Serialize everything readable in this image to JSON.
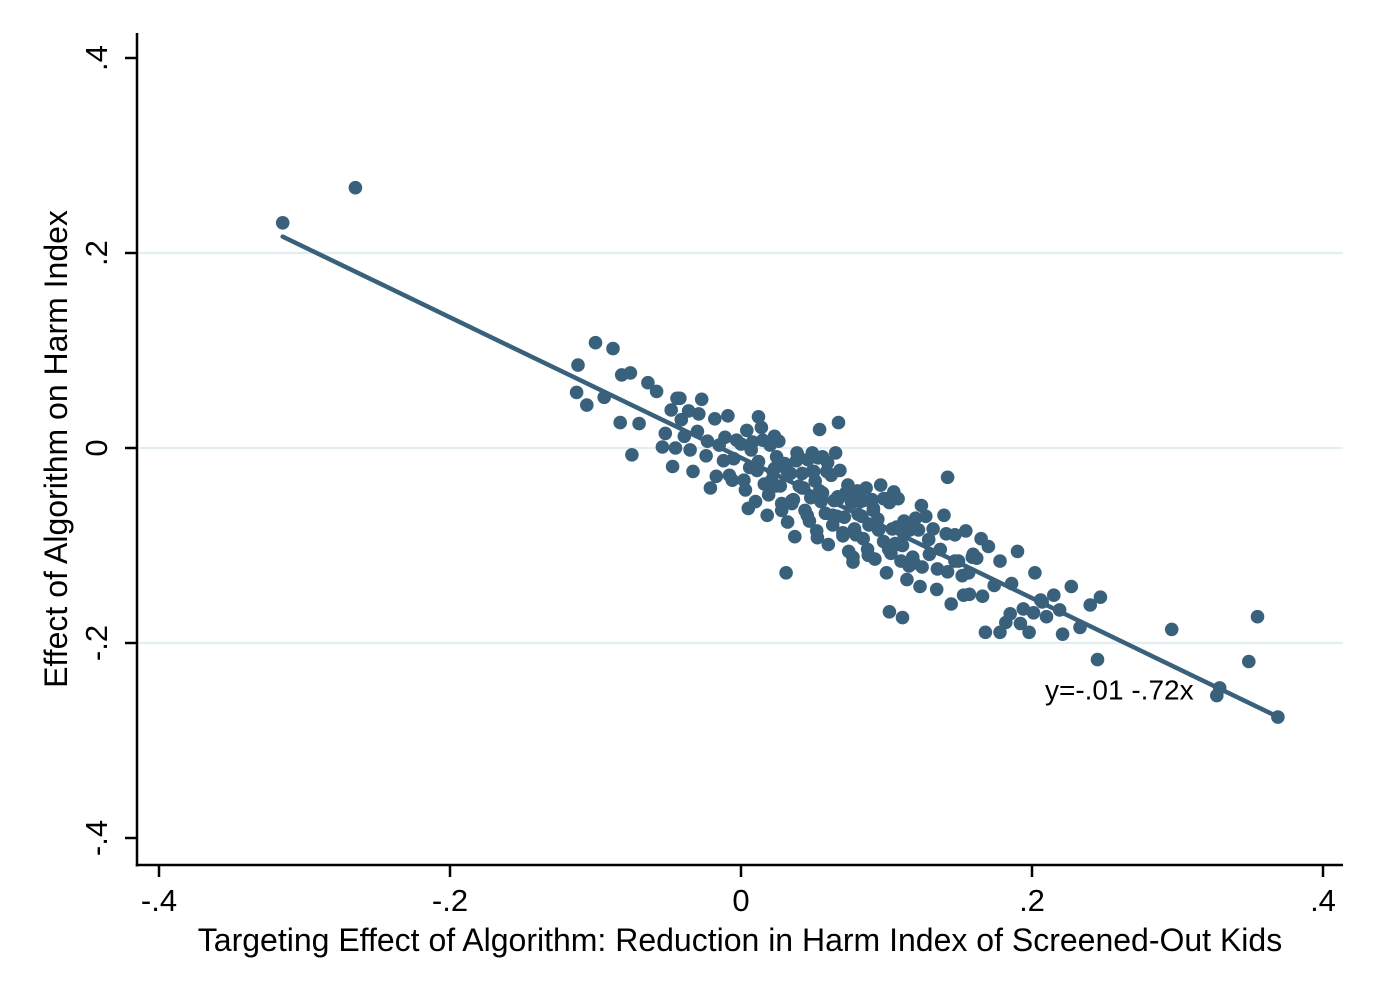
{
  "chart_data": {
    "type": "scatter",
    "title": "",
    "xlabel": "Targeting Effect of Algorithm: Reduction in Harm Index of Screened-Out Kids",
    "ylabel": "Effect of Algorithm on Harm Index",
    "xlim": [
      -0.415,
      0.414
    ],
    "ylim": [
      -0.428,
      0.426
    ],
    "grid": "horizontal gridlines only",
    "legend_position": "none",
    "xticks": {
      "values": [
        -0.4,
        -0.2,
        0,
        0.2,
        0.4
      ],
      "labels": [
        "-.4",
        "-.2",
        "0",
        ".2",
        ".4"
      ]
    },
    "yticks": {
      "values": [
        -0.4,
        -0.2,
        0,
        0.2,
        0.4
      ],
      "labels": [
        "-.4",
        "-.2",
        "0",
        ".2",
        ".4"
      ]
    },
    "gridline_values_y": [
      0.2,
      0,
      -0.2
    ],
    "colors": {
      "marker": "#3a617c",
      "fit_line": "#3a617c",
      "annotation": "#5d87a6",
      "gridline": "#e4eef1",
      "axis": "#000000"
    },
    "fit_line": {
      "equation_label": "y=-.01 -.72x",
      "intercept": -0.01,
      "slope": -0.72,
      "x_start": -0.315,
      "x_end": 0.369,
      "label_anchor_xy": [
        0.26,
        -0.258
      ]
    },
    "points": [
      [
        -0.315,
        0.231
      ],
      [
        -0.265,
        0.267
      ],
      [
        0.296,
        -0.186
      ],
      [
        0.355,
        -0.173
      ],
      [
        0.349,
        -0.219
      ],
      [
        0.329,
        -0.246
      ],
      [
        0.327,
        -0.254
      ],
      [
        0.369,
        -0.276
      ],
      [
        -0.112,
        0.085
      ],
      [
        -0.106,
        0.044
      ],
      [
        -0.1,
        0.108
      ],
      [
        -0.094,
        0.052
      ],
      [
        -0.088,
        0.102
      ],
      [
        -0.082,
        0.075
      ],
      [
        -0.076,
        0.077
      ],
      [
        -0.07,
        0.025
      ],
      [
        -0.064,
        0.067
      ],
      [
        -0.058,
        0.058
      ],
      [
        -0.052,
        0.015
      ],
      [
        -0.113,
        0.057
      ],
      [
        -0.075,
        -0.007
      ],
      [
        -0.054,
        0.001
      ],
      [
        -0.083,
        0.026
      ],
      [
        -0.048,
        0.039
      ],
      [
        -0.045,
        0.0
      ],
      [
        -0.042,
        0.051
      ],
      [
        -0.039,
        0.012
      ],
      [
        -0.036,
        0.038
      ],
      [
        -0.033,
        -0.024
      ],
      [
        -0.03,
        0.017
      ],
      [
        -0.027,
        0.05
      ],
      [
        -0.024,
        -0.008
      ],
      [
        -0.021,
        -0.041
      ],
      [
        -0.018,
        0.03
      ],
      [
        -0.015,
        0.003
      ],
      [
        -0.012,
        -0.013
      ],
      [
        -0.009,
        0.033
      ],
      [
        -0.006,
        -0.033
      ],
      [
        -0.003,
        0.008
      ],
      [
        -0.047,
        -0.019
      ],
      [
        -0.041,
        0.029
      ],
      [
        -0.035,
        -0.002
      ],
      [
        -0.029,
        0.035
      ],
      [
        -0.023,
        0.007
      ],
      [
        -0.017,
        -0.029
      ],
      [
        -0.011,
        0.011
      ],
      [
        -0.005,
        -0.011
      ],
      [
        -0.044,
        0.051
      ],
      [
        -0.008,
        -0.028
      ],
      [
        0.0,
        0.004
      ],
      [
        0.002,
        -0.033
      ],
      [
        0.004,
        0.018
      ],
      [
        0.006,
        -0.02
      ],
      [
        0.008,
        0.006
      ],
      [
        0.01,
        -0.055
      ],
      [
        0.012,
        -0.014
      ],
      [
        0.014,
        0.021
      ],
      [
        0.016,
        -0.037
      ],
      [
        0.018,
        -0.069
      ],
      [
        0.02,
        0.003
      ],
      [
        0.022,
        -0.024
      ],
      [
        0.024,
        -0.039
      ],
      [
        0.026,
        0.007
      ],
      [
        0.028,
        -0.057
      ],
      [
        0.03,
        -0.016
      ],
      [
        0.032,
        -0.076
      ],
      [
        0.034,
        -0.026
      ],
      [
        0.036,
        -0.053
      ],
      [
        0.038,
        -0.013
      ],
      [
        0.04,
        -0.039
      ],
      [
        0.003,
        -0.043
      ],
      [
        0.007,
        -0.002
      ],
      [
        0.011,
        -0.023
      ],
      [
        0.015,
        0.008
      ],
      [
        0.019,
        -0.048
      ],
      [
        0.023,
        -0.021
      ],
      [
        0.027,
        -0.039
      ],
      [
        0.031,
        -0.018
      ],
      [
        0.035,
        -0.057
      ],
      [
        0.039,
        -0.007
      ],
      [
        0.012,
        0.032
      ],
      [
        0.023,
        0.012
      ],
      [
        0.031,
        -0.128
      ],
      [
        0.005,
        -0.062
      ],
      [
        0.037,
        -0.091
      ],
      [
        0.042,
        -0.026
      ],
      [
        0.044,
        -0.064
      ],
      [
        0.046,
        -0.012
      ],
      [
        0.048,
        -0.051
      ],
      [
        0.05,
        -0.024
      ],
      [
        0.052,
        -0.085
      ],
      [
        0.054,
        -0.044
      ],
      [
        0.056,
        -0.009
      ],
      [
        0.058,
        -0.067
      ],
      [
        0.06,
        -0.099
      ],
      [
        0.062,
        -0.028
      ],
      [
        0.064,
        -0.054
      ],
      [
        0.066,
        -0.07
      ],
      [
        0.068,
        -0.023
      ],
      [
        0.07,
        -0.087
      ],
      [
        0.072,
        -0.046
      ],
      [
        0.074,
        -0.106
      ],
      [
        0.076,
        -0.056
      ],
      [
        0.078,
        -0.083
      ],
      [
        0.08,
        -0.044
      ],
      [
        0.043,
        -0.041
      ],
      [
        0.047,
        -0.075
      ],
      [
        0.051,
        -0.034
      ],
      [
        0.055,
        -0.055
      ],
      [
        0.059,
        -0.024
      ],
      [
        0.063,
        -0.079
      ],
      [
        0.067,
        -0.052
      ],
      [
        0.071,
        -0.071
      ],
      [
        0.075,
        -0.05
      ],
      [
        0.079,
        -0.089
      ],
      [
        0.054,
        0.019
      ],
      [
        0.067,
        0.026
      ],
      [
        0.065,
        -0.005
      ],
      [
        0.053,
        -0.01
      ],
      [
        0.049,
        -0.005
      ],
      [
        0.077,
        -0.112
      ],
      [
        0.082,
        -0.055
      ],
      [
        0.084,
        -0.093
      ],
      [
        0.086,
        -0.041
      ],
      [
        0.088,
        -0.079
      ],
      [
        0.09,
        -0.053
      ],
      [
        0.092,
        -0.114
      ],
      [
        0.094,
        -0.073
      ],
      [
        0.096,
        -0.038
      ],
      [
        0.098,
        -0.096
      ],
      [
        0.1,
        -0.128
      ],
      [
        0.102,
        -0.056
      ],
      [
        0.104,
        -0.083
      ],
      [
        0.106,
        -0.098
      ],
      [
        0.108,
        -0.052
      ],
      [
        0.11,
        -0.116
      ],
      [
        0.112,
        -0.075
      ],
      [
        0.114,
        -0.135
      ],
      [
        0.116,
        -0.084
      ],
      [
        0.118,
        -0.112
      ],
      [
        0.12,
        -0.072
      ],
      [
        0.083,
        -0.07
      ],
      [
        0.087,
        -0.104
      ],
      [
        0.091,
        -0.062
      ],
      [
        0.095,
        -0.083
      ],
      [
        0.099,
        -0.052
      ],
      [
        0.103,
        -0.108
      ],
      [
        0.107,
        -0.081
      ],
      [
        0.111,
        -0.1
      ],
      [
        0.115,
        -0.079
      ],
      [
        0.119,
        -0.118
      ],
      [
        0.102,
        -0.168
      ],
      [
        0.111,
        -0.174
      ],
      [
        0.122,
        -0.084
      ],
      [
        0.1245,
        -0.122
      ],
      [
        0.127,
        -0.07
      ],
      [
        0.1295,
        -0.109
      ],
      [
        0.132,
        -0.083
      ],
      [
        0.1345,
        -0.145
      ],
      [
        0.137,
        -0.104
      ],
      [
        0.1395,
        -0.069
      ],
      [
        0.142,
        -0.127
      ],
      [
        0.1445,
        -0.16
      ],
      [
        0.147,
        -0.089
      ],
      [
        0.1495,
        -0.116
      ],
      [
        0.152,
        -0.131
      ],
      [
        0.1545,
        -0.085
      ],
      [
        0.157,
        -0.15
      ],
      [
        0.1595,
        -0.109
      ],
      [
        0.123,
        -0.142
      ],
      [
        0.129,
        -0.094
      ],
      [
        0.135,
        -0.124
      ],
      [
        0.141,
        -0.088
      ],
      [
        0.147,
        -0.116
      ],
      [
        0.153,
        -0.151
      ],
      [
        0.159,
        -0.112
      ],
      [
        0.1565,
        -0.128
      ],
      [
        0.142,
        -0.03
      ],
      [
        0.124,
        -0.059
      ],
      [
        0.162,
        -0.113
      ],
      [
        0.166,
        -0.152
      ],
      [
        0.17,
        -0.101
      ],
      [
        0.174,
        -0.141
      ],
      [
        0.178,
        -0.116
      ],
      [
        0.182,
        -0.179
      ],
      [
        0.186,
        -0.139
      ],
      [
        0.19,
        -0.106
      ],
      [
        0.194,
        -0.165
      ],
      [
        0.198,
        -0.189
      ],
      [
        0.202,
        -0.128
      ],
      [
        0.206,
        -0.156
      ],
      [
        0.21,
        -0.173
      ],
      [
        0.168,
        -0.189
      ],
      [
        0.178,
        -0.189
      ],
      [
        0.192,
        -0.18
      ],
      [
        0.201,
        -0.169
      ],
      [
        0.207,
        -0.158
      ],
      [
        0.165,
        -0.093
      ],
      [
        0.185,
        -0.17
      ],
      [
        0.215,
        -0.151
      ],
      [
        0.221,
        -0.191
      ],
      [
        0.227,
        -0.142
      ],
      [
        0.233,
        -0.184
      ],
      [
        0.24,
        -0.161
      ],
      [
        0.245,
        -0.217
      ],
      [
        0.219,
        -0.166
      ],
      [
        0.247,
        -0.153
      ],
      [
        0.021,
        -0.033
      ],
      [
        0.0245,
        -0.009
      ],
      [
        0.028,
        -0.064
      ],
      [
        0.0315,
        -0.023
      ],
      [
        0.035,
        -0.054
      ],
      [
        0.0385,
        -0.005
      ],
      [
        0.042,
        -0.041
      ],
      [
        0.0455,
        -0.069
      ],
      [
        0.049,
        -0.024
      ],
      [
        0.0525,
        -0.092
      ],
      [
        0.056,
        -0.046
      ],
      [
        0.0595,
        -0.015
      ],
      [
        0.063,
        -0.069
      ],
      [
        0.0665,
        -0.05
      ],
      [
        0.07,
        -0.09
      ],
      [
        0.0735,
        -0.038
      ],
      [
        0.077,
        -0.117
      ],
      [
        0.0805,
        -0.068
      ],
      [
        0.084,
        -0.054
      ],
      [
        0.0875,
        -0.11
      ],
      [
        0.091,
        -0.064
      ],
      [
        0.0945,
        -0.084
      ],
      [
        0.098,
        -0.052
      ],
      [
        0.1015,
        -0.104
      ],
      [
        0.105,
        -0.045
      ],
      [
        0.1085,
        -0.099
      ],
      [
        0.112,
        -0.089
      ],
      [
        0.1155,
        -0.121
      ],
      [
        0.119,
        -0.081
      ]
    ]
  }
}
